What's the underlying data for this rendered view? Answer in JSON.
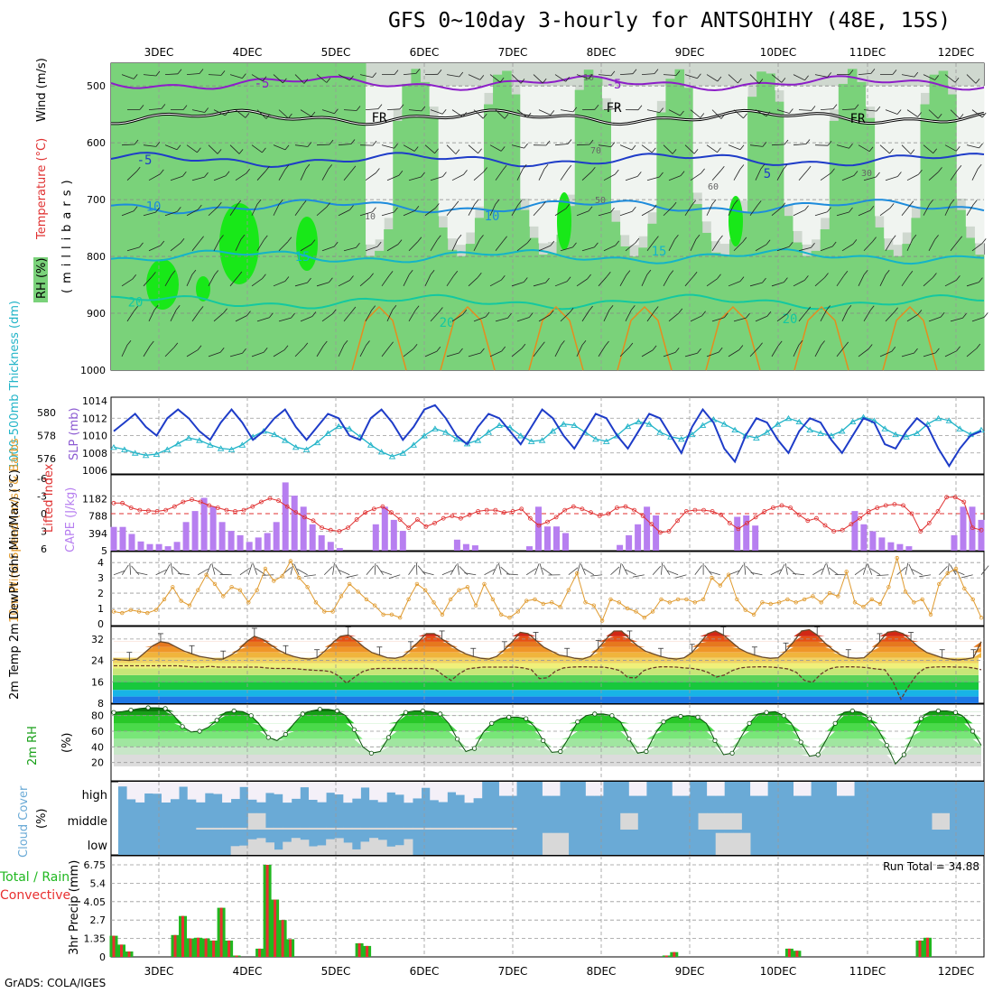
{
  "title": "GFS 0~10day 3-hourly for ANTSOHIHY (48E, 15S)",
  "credit": "GrADS: COLA/IGES",
  "colors": {
    "purple": "#8c1ec8",
    "blue_dark": "#1e3cc8",
    "blue": "#1e8cdc",
    "cyan": "#14b4c8",
    "teal": "#14c8a0",
    "orange": "#e68c1e",
    "rh_green": "#7ad27a",
    "bright_green": "#18e818",
    "cape": "#b77ff0",
    "lift": "#e03030",
    "slp": "#1e3cc8",
    "thick": "#22b4c8",
    "wind10": "#e09b30",
    "rain": "#20b820",
    "conv": "#e83030",
    "cloud": "#6aaad6",
    "cloud_clear": "#f4f0f8"
  },
  "chart_data": [
    {
      "type": "heatmap",
      "name": "upper-air",
      "ylabel_parts": [
        "RH (%)",
        "Temperature (°C)",
        "Wind (m/s)",
        "(millibars)"
      ],
      "y_ticks": [
        "500",
        "600",
        "700",
        "800",
        "900",
        "1000"
      ],
      "date_ticks": [
        "3DEC",
        "4DEC",
        "5DEC",
        "6DEC",
        "7DEC",
        "8DEC",
        "9DEC",
        "10DEC",
        "11DEC",
        "12DEC"
      ],
      "isotherms": [
        {
          "label": "-5",
          "pressure_mean": 495,
          "color": "#8c1ec8"
        },
        {
          "label": "FR",
          "pressure_mean": 555,
          "color": "#000000"
        },
        {
          "label": "-5",
          "pressure_mean": 630,
          "color": "#1e3cc8"
        },
        {
          "label": "10",
          "pressure_mean": 712,
          "color": "#1e8cdc"
        },
        {
          "label": "15",
          "pressure_mean": 800,
          "color": "#14b4c8"
        },
        {
          "label": "20",
          "pressure_mean": 880,
          "color": "#14c8a0"
        }
      ],
      "contour_labels": [
        "10",
        "10",
        "30",
        "50",
        "60",
        "70"
      ]
    },
    {
      "type": "line",
      "name": "slp-thickness",
      "ylabel_left": "1000-500mb Thickness (dm)",
      "ylabel_right": "SLP (mb)",
      "y_ticks_left": [
        "580",
        "578",
        "576"
      ],
      "y_ticks_right": [
        "1014",
        "1012",
        "1010",
        "1008",
        "1006"
      ],
      "series": [
        {
          "name": "SLP",
          "values": [
            1010.5,
            1011.5,
            1012.5,
            1011,
            1010,
            1012,
            1013,
            1012,
            1010.5,
            1009.5,
            1011.5,
            1013,
            1011.5,
            1009.5,
            1010.5,
            1012,
            1013,
            1011,
            1009.5,
            1011,
            1012.5,
            1012,
            1010,
            1009.5,
            1012,
            1013,
            1011.5,
            1009.5,
            1011,
            1013,
            1013.5,
            1012,
            1010,
            1009,
            1011,
            1012.5,
            1012,
            1010.5,
            1009,
            1011,
            1013,
            1012,
            1010,
            1008.5,
            1010.5,
            1012.5,
            1012,
            1010,
            1008.5,
            1010.5,
            1012.5,
            1012,
            1010,
            1008,
            1011,
            1013,
            1011.5,
            1008.5,
            1007,
            1010,
            1012,
            1011.5,
            1009.5,
            1008,
            1010.5,
            1012,
            1011.5,
            1009.5,
            1008,
            1010,
            1012,
            1011.5,
            1009,
            1008.5,
            1010.5,
            1012,
            1011,
            1008.5,
            1006.5,
            1008.5,
            1010,
            1010.5
          ]
        },
        {
          "name": "Thickness",
          "values": [
            577,
            576.8,
            576.5,
            576.3,
            576.4,
            576.8,
            577.3,
            577.8,
            577.6,
            577.2,
            576.9,
            576.8,
            577.2,
            577.9,
            578.4,
            578.1,
            577.6,
            577.0,
            576.8,
            577.4,
            578.2,
            578.8,
            578.6,
            577.9,
            577.2,
            576.6,
            576.2,
            576.5,
            577.2,
            578.0,
            578.6,
            578.3,
            577.7,
            577.3,
            577.6,
            578.3,
            578.9,
            578.7,
            578.0,
            577.5,
            577.6,
            578.4,
            579.0,
            578.9,
            578.3,
            577.7,
            577.5,
            578.0,
            578.8,
            579.2,
            579.0,
            578.3,
            577.9,
            577.7,
            578.1,
            578.9,
            579.4,
            579.0,
            578.5,
            578.0,
            577.8,
            578.3,
            579.0,
            579.5,
            579.2,
            578.5,
            578.2,
            578.0,
            578.4,
            579.2,
            579.6,
            579.3,
            578.6,
            578.1,
            577.9,
            578.2,
            579.0,
            579.5,
            579.3,
            578.6,
            578.1,
            578.5
          ]
        }
      ]
    },
    {
      "type": "bar",
      "name": "cape-li",
      "ylabel_left": "Lifted Index",
      "ylabel_right": "CAPE (J/kg)",
      "y_ticks_left": [
        "-6",
        "-3",
        "0",
        "3",
        "6"
      ],
      "y_ticks_right": [
        "1182",
        "788",
        "394",
        "5"
      ],
      "series": [
        {
          "name": "CAPE",
          "values": [
            540,
            540,
            380,
            210,
            150,
            150,
            100,
            200,
            650,
            900,
            1200,
            1000,
            650,
            450,
            350,
            200,
            300,
            400,
            650,
            1550,
            1250,
            1000,
            600,
            350,
            200,
            60,
            0,
            0,
            0,
            600,
            1000,
            700,
            450,
            0,
            0,
            0,
            0,
            0,
            250,
            150,
            120,
            0,
            0,
            0,
            0,
            0,
            100,
            1000,
            550,
            550,
            400,
            0,
            0,
            0,
            0,
            0,
            130,
            350,
            600,
            1000,
            800,
            0,
            0,
            0,
            0,
            0,
            0,
            0,
            0,
            770,
            800,
            570,
            0,
            0,
            0,
            0,
            0,
            0,
            0,
            0,
            0,
            0,
            900,
            600,
            440,
            300,
            190,
            150,
            100,
            0,
            0,
            0,
            0,
            350,
            1000,
            1000,
            700
          ]
        },
        {
          "name": "Lifted Index",
          "values": [
            -1.8,
            -1.8,
            -1.0,
            -0.6,
            -0.5,
            -0.4,
            -0.6,
            -1.2,
            -2.0,
            -2.4,
            -2.0,
            -1.4,
            -1.0,
            -0.6,
            -0.4,
            -0.6,
            -1.2,
            -2.0,
            -2.6,
            -2.2,
            -1.2,
            -0.2,
            0.6,
            1.2,
            2.4,
            2.8,
            3.0,
            2.4,
            1.0,
            -0.2,
            -0.8,
            -1.2,
            -0.2,
            1.0,
            2.4,
            1.0,
            2.2,
            1.6,
            0.8,
            0.4,
            0.8,
            0.2,
            -0.4,
            -0.6,
            -0.6,
            -0.2,
            -0.4,
            -0.8,
            0.8,
            2.0,
            1.4,
            0.6,
            -0.6,
            -1.2,
            -0.8,
            -0.2,
            0.4,
            0.0,
            -1.0,
            -1.2,
            -0.6,
            0.4,
            1.8,
            3.2,
            3.0,
            1.2,
            -0.4,
            -0.6,
            -0.6,
            -0.4,
            0.2,
            1.6,
            2.6,
            1.6,
            0.6,
            -0.4,
            -1.0,
            -1.4,
            -1.0,
            0.2,
            1.2,
            0.8,
            2.0,
            3.0,
            2.8,
            1.8,
            0.8,
            -0.4,
            -1.0,
            -1.4,
            -1.6,
            -1.4,
            0.0,
            3.0,
            1.6,
            -0.4,
            -2.8,
            -2.8,
            -2.0,
            2.4,
            2.8
          ]
        }
      ]
    },
    {
      "type": "line",
      "name": "wind10m",
      "ylabel": "10m Wind Speed (m/s) & Barbs",
      "y_ticks": [
        "4",
        "3",
        "2",
        "1",
        "0"
      ],
      "series": [
        {
          "name": "10m Wind",
          "values": [
            0.8,
            0.7,
            0.9,
            0.8,
            0.7,
            0.9,
            1.6,
            2.4,
            1.5,
            1.2,
            2.2,
            3.2,
            2.6,
            1.8,
            2.4,
            2.2,
            1.4,
            2.2,
            3.6,
            2.8,
            3.1,
            4.1,
            3.0,
            2.4,
            1.4,
            0.8,
            0.8,
            1.8,
            2.6,
            2.1,
            1.6,
            1.2,
            0.6,
            0.6,
            0.4,
            1.6,
            2.6,
            2.2,
            1.4,
            0.6,
            1.6,
            2.2,
            2.4,
            1.2,
            2.6,
            1.6,
            0.6,
            0.4,
            0.8,
            1.5,
            1.6,
            1.3,
            1.4,
            1.1,
            2.2,
            3.3,
            1.4,
            1.2,
            0.2,
            1.6,
            1.4,
            1.0,
            0.8,
            0.4,
            0.8,
            1.6,
            1.4,
            1.6,
            1.6,
            1.4,
            1.6,
            3.0,
            2.5,
            3.2,
            1.6,
            0.9,
            0.6,
            1.4,
            1.3,
            1.4,
            1.6,
            1.4,
            1.6,
            1.8,
            1.4,
            2.0,
            1.8,
            3.4,
            1.4,
            1.1,
            1.6,
            1.3,
            2.4,
            4.3,
            2.1,
            1.4,
            1.6,
            0.6,
            2.6,
            3.3,
            3.6,
            2.3,
            1.6,
            0.4
          ]
        }
      ]
    },
    {
      "type": "area",
      "name": "temp-dewpt",
      "ylabel": "2m Temp 2m DewPt (6hr Min/Max) (°C)",
      "y_ticks": [
        "32",
        "24",
        "16",
        "8"
      ],
      "series": [
        {
          "name": "2m Temp",
          "values": [
            24.5,
            24.2,
            24.0,
            24.5,
            27,
            29.5,
            31,
            30.5,
            29,
            27.5,
            26.5,
            25.5,
            25,
            24.5,
            24.5,
            26,
            28,
            31,
            33,
            32,
            30,
            28,
            26.5,
            25.5,
            24.8,
            24.5,
            25,
            27.5,
            30.5,
            33,
            33.5,
            31.5,
            29,
            27,
            26,
            25,
            24.8,
            25.5,
            28,
            31,
            34,
            34,
            32,
            30,
            28,
            26.5,
            25.5,
            24.8,
            24.5,
            25.5,
            28,
            31,
            34.5,
            34,
            31.5,
            29,
            27.5,
            26,
            25.5,
            24.8,
            24.5,
            25.5,
            28.5,
            32,
            35,
            35,
            32,
            29.5,
            27.5,
            26.5,
            25.5,
            24.8,
            24.5,
            25,
            27,
            30.5,
            34,
            35,
            33.5,
            31,
            28.5,
            27,
            26,
            25.2,
            24.8,
            25,
            27.5,
            31,
            35,
            35.5,
            33.5,
            30.5,
            28,
            26,
            25,
            24.8,
            25,
            27.5,
            31,
            34.5,
            35,
            34,
            31.5,
            29,
            27,
            26,
            25,
            24.5,
            24.2,
            24.5,
            25,
            31
          ]
        },
        {
          "name": "2m DewPt",
          "values": [
            22,
            22,
            22,
            22,
            22,
            22,
            22,
            22,
            22,
            21.8,
            21.5,
            21.5,
            21.8,
            21.5,
            21.5,
            21.5,
            21.5,
            21.5,
            21.5,
            21.2,
            21,
            21,
            21,
            20.8,
            20.5,
            20.3,
            20.2,
            19.8,
            18.2,
            15.5,
            17.8,
            19.8,
            20.8,
            21,
            21,
            21,
            21,
            21,
            21,
            21,
            20.8,
            18.5,
            16.5,
            19,
            20.8,
            21.2,
            21.5,
            21.5,
            21.5,
            21.5,
            21.5,
            21.2,
            20.5,
            17.2,
            17.5,
            20,
            21.2,
            21.5,
            21.6,
            21.6,
            21.5,
            21.5,
            21,
            20.2,
            17.6,
            17.5,
            20.2,
            21.2,
            21.6,
            21.6,
            21.5,
            21.2,
            21,
            20.5,
            19.5,
            17.8,
            18.5,
            20.2,
            21.2,
            21.5,
            21.6,
            21.6,
            21.5,
            21.2,
            20.8,
            19.5,
            16.5,
            15.8,
            18.8,
            20.8,
            21.5,
            21.6,
            21.6,
            21.5,
            21.2,
            20.8,
            20.5,
            16.2,
            9.5,
            14.5,
            18.8,
            21.2,
            21.5,
            21.6,
            21.6,
            21.5,
            21.5,
            21.2,
            20.5
          ]
        }
      ]
    },
    {
      "type": "area",
      "name": "rh2m",
      "ylabel": "2m RH (%)",
      "y_ticks": [
        "80",
        "60",
        "40",
        "20"
      ],
      "series": [
        {
          "name": "2m RH",
          "values": [
            84,
            85,
            87,
            89,
            90,
            90,
            89,
            80,
            66,
            59,
            60,
            65,
            74,
            84,
            86,
            85,
            80,
            68,
            52,
            48,
            56,
            70,
            82,
            86,
            88,
            88,
            86,
            80,
            62,
            40,
            32,
            34,
            52,
            72,
            84,
            86,
            86,
            85,
            82,
            70,
            50,
            34,
            38,
            58,
            70,
            76,
            78,
            78,
            76,
            66,
            48,
            33,
            34,
            52,
            72,
            80,
            82,
            82,
            80,
            72,
            50,
            32,
            34,
            56,
            72,
            78,
            79,
            80,
            78,
            70,
            48,
            30,
            32,
            52,
            70,
            82,
            84,
            85,
            80,
            68,
            46,
            28,
            30,
            50,
            70,
            84,
            86,
            84,
            76,
            62,
            42,
            18,
            30,
            54,
            76,
            85,
            86,
            86,
            84,
            78,
            60,
            42
          ]
        }
      ]
    },
    {
      "type": "heatmap",
      "name": "cloud-cover",
      "ylabel": "Cloud Cover (%)",
      "levels": [
        "high",
        "middle",
        "low"
      ]
    },
    {
      "type": "bar",
      "name": "precip",
      "ylabel": "3hr Precip (mm)",
      "side_label": [
        "Total / Rain",
        "Convective"
      ],
      "annotation": "Run Total = 34.88",
      "y_ticks": [
        "6.75",
        "5.4",
        "4.05",
        "2.7",
        "1.35",
        "0"
      ],
      "series": [
        {
          "name": "Total / Rain",
          "values": [
            1.55,
            0.9,
            0.4,
            0,
            0,
            0,
            0,
            0,
            1.6,
            3.0,
            1.35,
            1.4,
            1.35,
            1.2,
            3.6,
            1.2,
            0.1,
            0,
            0,
            0.6,
            6.75,
            4.2,
            2.7,
            1.3,
            0,
            0,
            0,
            0,
            0,
            0,
            0,
            0,
            1.0,
            0.8,
            0,
            0,
            0,
            0,
            0,
            0,
            0,
            0,
            0,
            0,
            0,
            0,
            0,
            0,
            0,
            0,
            0,
            0,
            0,
            0,
            0,
            0,
            0,
            0,
            0,
            0,
            0,
            0,
            0,
            0,
            0,
            0,
            0,
            0,
            0,
            0,
            0,
            0,
            0.1,
            0.35,
            0,
            0,
            0,
            0,
            0,
            0,
            0,
            0,
            0,
            0,
            0,
            0,
            0,
            0,
            0.6,
            0.45,
            0,
            0,
            0,
            0,
            0,
            0,
            0,
            0,
            0,
            0,
            0,
            0,
            0,
            0,
            0,
            1.2,
            1.4,
            0,
            0,
            0,
            0,
            0,
            0,
            0
          ]
        }
      ]
    }
  ]
}
